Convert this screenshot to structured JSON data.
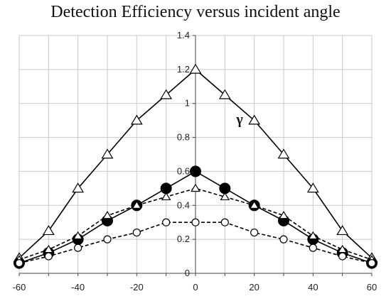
{
  "chart_data": {
    "type": "line",
    "title": "Detection Efficiency versus incident angle",
    "xlabel": "",
    "ylabel": "",
    "xlim": [
      -60,
      60
    ],
    "ylim": [
      0,
      1.4
    ],
    "xticks": [
      -60,
      -40,
      -20,
      0,
      20,
      40,
      60
    ],
    "xgrid": [
      -60,
      -50,
      -40,
      -30,
      -20,
      -10,
      0,
      10,
      20,
      30,
      40,
      50,
      60
    ],
    "yticks": [
      0,
      0.2,
      0.4,
      0.6,
      0.8,
      1,
      1.2,
      1.4
    ],
    "ytick_labels": [
      "0",
      "0.2",
      "0.4",
      "0.6",
      "0.8",
      "1",
      "1.2",
      "1.4"
    ],
    "grid": true,
    "legend": "none",
    "annotations": [
      {
        "text": "γ",
        "x": 15,
        "y": 0.88
      }
    ],
    "series": [
      {
        "marker": "open-triangle",
        "line": "solid",
        "color": "#000000",
        "x": [
          -60,
          -50,
          -40,
          -30,
          -20,
          -10,
          0,
          10,
          20,
          30,
          40,
          50,
          60
        ],
        "values": [
          0.09,
          0.25,
          0.5,
          0.7,
          0.9,
          1.05,
          1.2,
          1.05,
          0.9,
          0.7,
          0.5,
          0.25,
          0.09
        ]
      },
      {
        "marker": "filled-circle",
        "line": "solid",
        "color": "#000000",
        "x": [
          -60,
          -50,
          -40,
          -30,
          -20,
          -10,
          0,
          10,
          20,
          30,
          40,
          50,
          60
        ],
        "values": [
          0.06,
          0.12,
          0.2,
          0.31,
          0.4,
          0.5,
          0.6,
          0.5,
          0.4,
          0.31,
          0.2,
          0.12,
          0.06
        ]
      },
      {
        "marker": "open-triangle-small",
        "line": "dashed",
        "color": "#000000",
        "x": [
          -60,
          -50,
          -40,
          -30,
          -20,
          -10,
          0,
          10,
          20,
          30,
          40,
          50,
          60
        ],
        "values": [
          0.08,
          0.14,
          0.22,
          0.34,
          0.4,
          0.45,
          0.5,
          0.45,
          0.4,
          0.34,
          0.22,
          0.14,
          0.08
        ]
      },
      {
        "marker": "open-circle",
        "line": "dashed",
        "color": "#000000",
        "x": [
          -60,
          -50,
          -40,
          -30,
          -20,
          -10,
          0,
          10,
          20,
          30,
          40,
          50,
          60
        ],
        "values": [
          0.06,
          0.1,
          0.15,
          0.2,
          0.24,
          0.3,
          0.3,
          0.3,
          0.24,
          0.2,
          0.15,
          0.1,
          0.06
        ]
      }
    ]
  }
}
